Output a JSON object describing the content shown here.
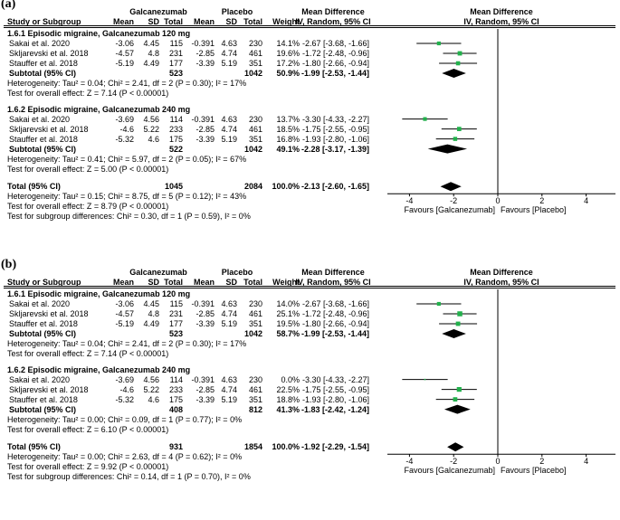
{
  "chart_data": [
    {
      "type": "forest",
      "panel_label": "(a)",
      "header": {
        "treatment": "Galcanezumab",
        "control": "Placebo",
        "study": "Study or Subgroup",
        "mean": "Mean",
        "sd": "SD",
        "total": "Total",
        "weight": "Weight",
        "md_top": "Mean Difference",
        "md_sub": "IV, Random, 95% CI"
      },
      "subgroups": [
        {
          "title": "1.6.1 Episodic migraine, Galcanezumab 120 mg",
          "studies": [
            {
              "name": "Sakai et al. 2020",
              "mean1": "-3.06",
              "sd1": "4.45",
              "n1": "115",
              "mean2": "-0.391",
              "sd2": "4.63",
              "n2": "230",
              "weight": "14.1%",
              "ci_text": "-2.67 [-3.68, -1.66]",
              "md": -2.67,
              "lo": -3.68,
              "hi": -1.66,
              "w": 14.1
            },
            {
              "name": "Skljarevski et al. 2018",
              "mean1": "-4.57",
              "sd1": "4.8",
              "n1": "231",
              "mean2": "-2.85",
              "sd2": "4.74",
              "n2": "461",
              "weight": "19.6%",
              "ci_text": "-1.72 [-2.48, -0.96]",
              "md": -1.72,
              "lo": -2.48,
              "hi": -0.96,
              "w": 19.6
            },
            {
              "name": "Stauffer et al. 2018",
              "mean1": "-5.19",
              "sd1": "4.49",
              "n1": "177",
              "mean2": "-3.39",
              "sd2": "5.19",
              "n2": "351",
              "weight": "17.2%",
              "ci_text": "-1.80 [-2.66, -0.94]",
              "md": -1.8,
              "lo": -2.66,
              "hi": -0.94,
              "w": 17.2
            }
          ],
          "subtotal": {
            "label": "Subtotal (95% CI)",
            "n1": "523",
            "n2": "1042",
            "weight": "50.9%",
            "ci_text": "-1.99 [-2.53, -1.44]",
            "md": -1.99,
            "lo": -2.53,
            "hi": -1.44
          },
          "heterogeneity": "Heterogeneity: Tau² = 0.04; Chi² = 2.41, df = 2 (P = 0.30); I² = 17%",
          "overall_effect": "Test for overall effect: Z = 7.14 (P < 0.00001)"
        },
        {
          "title": "1.6.2 Episodic migraine, Galcanezumab 240 mg",
          "studies": [
            {
              "name": "Sakai et al. 2020",
              "mean1": "-3.69",
              "sd1": "4.56",
              "n1": "114",
              "mean2": "-0.391",
              "sd2": "4.63",
              "n2": "230",
              "weight": "13.7%",
              "ci_text": "-3.30 [-4.33, -2.27]",
              "md": -3.3,
              "lo": -4.33,
              "hi": -2.27,
              "w": 13.7
            },
            {
              "name": "Skljarevski et al. 2018",
              "mean1": "-4.6",
              "sd1": "5.22",
              "n1": "233",
              "mean2": "-2.85",
              "sd2": "4.74",
              "n2": "461",
              "weight": "18.5%",
              "ci_text": "-1.75 [-2.55, -0.95]",
              "md": -1.75,
              "lo": -2.55,
              "hi": -0.95,
              "w": 18.5
            },
            {
              "name": "Stauffer et al. 2018",
              "mean1": "-5.32",
              "sd1": "4.6",
              "n1": "175",
              "mean2": "-3.39",
              "sd2": "5.19",
              "n2": "351",
              "weight": "16.8%",
              "ci_text": "-1.93 [-2.80, -1.06]",
              "md": -1.93,
              "lo": -2.8,
              "hi": -1.06,
              "w": 16.8
            }
          ],
          "subtotal": {
            "label": "Subtotal (95% CI)",
            "n1": "522",
            "n2": "1042",
            "weight": "49.1%",
            "ci_text": "-2.28 [-3.17, -1.39]",
            "md": -2.28,
            "lo": -3.17,
            "hi": -1.39
          },
          "heterogeneity": "Heterogeneity: Tau² = 0.41; Chi² = 5.97, df = 2 (P = 0.05); I² = 67%",
          "overall_effect": "Test for overall effect: Z = 5.00 (P < 0.00001)"
        }
      ],
      "total": {
        "label": "Total (95% CI)",
        "n1": "1045",
        "n2": "2084",
        "weight": "100.0%",
        "ci_text": "-2.13 [-2.60, -1.65]",
        "md": -2.13,
        "lo": -2.6,
        "hi": -1.65
      },
      "footer": [
        "Heterogeneity: Tau² = 0.15; Chi² = 8.75, df = 5 (P = 0.12); I² = 43%",
        "Test for overall effect: Z = 8.79 (P < 0.00001)",
        "Test for subgroup differences: Chi² = 0.30, df = 1 (P = 0.59), I² = 0%"
      ],
      "axis": {
        "min": -5,
        "max": 5,
        "ticks": [
          -4,
          -2,
          0,
          2,
          4
        ],
        "tick_labels": [
          "-4",
          "-2",
          "0",
          "2",
          "4"
        ]
      },
      "favours_left": "Favours [Galcanezumab]",
      "favours_right": "Favours [Placebo]"
    },
    {
      "type": "forest",
      "panel_label": "(b)",
      "header": {
        "treatment": "Galcanezumab",
        "control": "Placebo",
        "study": "Study or Subgroup",
        "mean": "Mean",
        "sd": "SD",
        "total": "Total",
        "weight": "Weight",
        "md_top": "Mean Difference",
        "md_sub": "IV, Random, 95% CI"
      },
      "subgroups": [
        {
          "title": "1.6.1 Episodic migraine, Galcanezumab 120 mg",
          "studies": [
            {
              "name": "Sakai et al. 2020",
              "mean1": "-3.06",
              "sd1": "4.45",
              "n1": "115",
              "mean2": "-0.391",
              "sd2": "4.63",
              "n2": "230",
              "weight": "14.0%",
              "ci_text": "-2.67 [-3.68, -1.66]",
              "md": -2.67,
              "lo": -3.68,
              "hi": -1.66,
              "w": 14.0
            },
            {
              "name": "Skljarevski et al. 2018",
              "mean1": "-4.57",
              "sd1": "4.8",
              "n1": "231",
              "mean2": "-2.85",
              "sd2": "4.74",
              "n2": "461",
              "weight": "25.1%",
              "ci_text": "-1.72 [-2.48, -0.96]",
              "md": -1.72,
              "lo": -2.48,
              "hi": -0.96,
              "w": 25.1
            },
            {
              "name": "Stauffer et al. 2018",
              "mean1": "-5.19",
              "sd1": "4.49",
              "n1": "177",
              "mean2": "-3.39",
              "sd2": "5.19",
              "n2": "351",
              "weight": "19.5%",
              "ci_text": "-1.80 [-2.66, -0.94]",
              "md": -1.8,
              "lo": -2.66,
              "hi": -0.94,
              "w": 19.5
            }
          ],
          "subtotal": {
            "label": "Subtotal (95% CI)",
            "n1": "523",
            "n2": "1042",
            "weight": "58.7%",
            "ci_text": "-1.99 [-2.53, -1.44]",
            "md": -1.99,
            "lo": -2.53,
            "hi": -1.44
          },
          "heterogeneity": "Heterogeneity: Tau² = 0.04; Chi² = 2.41, df = 2 (P = 0.30); I² = 17%",
          "overall_effect": "Test for overall effect: Z = 7.14 (P < 0.00001)"
        },
        {
          "title": "1.6.2 Episodic migraine, Galcanezumab 240 mg",
          "studies": [
            {
              "name": "Sakai et al. 2020",
              "mean1": "-3.69",
              "sd1": "4.56",
              "n1": "114",
              "mean2": "-0.391",
              "sd2": "4.63",
              "n2": "230",
              "weight": "0.0%",
              "ci_text": "-3.30 [-4.33, -2.27]",
              "md": -3.3,
              "lo": -4.33,
              "hi": -2.27,
              "w": 0
            },
            {
              "name": "Skljarevski et al. 2018",
              "mean1": "-4.6",
              "sd1": "5.22",
              "n1": "233",
              "mean2": "-2.85",
              "sd2": "4.74",
              "n2": "461",
              "weight": "22.5%",
              "ci_text": "-1.75 [-2.55, -0.95]",
              "md": -1.75,
              "lo": -2.55,
              "hi": -0.95,
              "w": 22.5
            },
            {
              "name": "Stauffer et al. 2018",
              "mean1": "-5.32",
              "sd1": "4.6",
              "n1": "175",
              "mean2": "-3.39",
              "sd2": "5.19",
              "n2": "351",
              "weight": "18.8%",
              "ci_text": "-1.93 [-2.80, -1.06]",
              "md": -1.93,
              "lo": -2.8,
              "hi": -1.06,
              "w": 18.8
            }
          ],
          "subtotal": {
            "label": "Subtotal (95% CI)",
            "n1": "408",
            "n2": "812",
            "weight": "41.3%",
            "ci_text": "-1.83 [-2.42, -1.24]",
            "md": -1.83,
            "lo": -2.42,
            "hi": -1.24
          },
          "heterogeneity": "Heterogeneity: Tau² = 0.00; Chi² = 0.09, df = 1 (P = 0.77); I² = 0%",
          "overall_effect": "Test for overall effect: Z = 6.10 (P < 0.00001)"
        }
      ],
      "total": {
        "label": "Total (95% CI)",
        "n1": "931",
        "n2": "1854",
        "weight": "100.0%",
        "ci_text": "-1.92 [-2.29, -1.54]",
        "md": -1.92,
        "lo": -2.29,
        "hi": -1.54
      },
      "footer": [
        "Heterogeneity: Tau² = 0.00; Chi² = 2.63, df = 4 (P = 0.62); I² = 0%",
        "Test for overall effect: Z = 9.92 (P < 0.00001)",
        "Test for subgroup differences: Chi² = 0.14, df = 1 (P = 0.70), I² = 0%"
      ],
      "axis": {
        "min": -5,
        "max": 5,
        "ticks": [
          -4,
          -2,
          0,
          2,
          4
        ],
        "tick_labels": [
          "-4",
          "-2",
          "0",
          "2",
          "4"
        ]
      },
      "favours_left": "Favours [Galcanezumab]",
      "favours_right": "Favours [Placebo]"
    }
  ],
  "colors": {
    "study_square": "#22b14c",
    "line": "#000000",
    "text": "#000000"
  }
}
